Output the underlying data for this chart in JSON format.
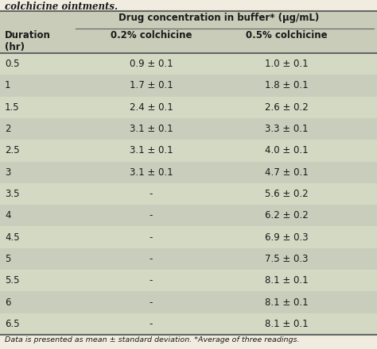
{
  "title_line": "colchicine ointments.",
  "header_col0": "Duration\n(hr)",
  "header_group": "Drug concentration in buffer* (μg/mL)",
  "header_col1": "0.2% colchicine",
  "header_col2": "0.5% colchicine",
  "rows": [
    [
      "0.5",
      "0.9 ± 0.1",
      "1.0 ± 0.1"
    ],
    [
      "1",
      "1.7 ± 0.1",
      "1.8 ± 0.1"
    ],
    [
      "1.5",
      "2.4 ± 0.1",
      "2.6 ± 0.2"
    ],
    [
      "2",
      "3.1 ± 0.1",
      "3.3 ± 0.1"
    ],
    [
      "2.5",
      "3.1 ± 0.1",
      "4.0 ± 0.1"
    ],
    [
      "3",
      "3.1 ± 0.1",
      "4.7 ± 0.1"
    ],
    [
      "3.5",
      "-",
      "5.6 ± 0.2"
    ],
    [
      "4",
      "-",
      "6.2 ± 0.2"
    ],
    [
      "4.5",
      "-",
      "6.9 ± 0.3"
    ],
    [
      "5",
      "-",
      "7.5 ± 0.3"
    ],
    [
      "5.5",
      "-",
      "8.1 ± 0.1"
    ],
    [
      "6",
      "-",
      "8.1 ± 0.1"
    ],
    [
      "6.5",
      "-",
      "8.1 ± 0.1"
    ]
  ],
  "footnote": "Data is presented as mean ± standard deviation. *Average of three readings.",
  "fig_bg": "#f0ede0",
  "table_bg_light": "#d4d9c4",
  "table_bg_dark": "#c9cebc",
  "header_bg": "#c8ccb8",
  "line_color": "#666666",
  "text_color": "#1a1a1a"
}
